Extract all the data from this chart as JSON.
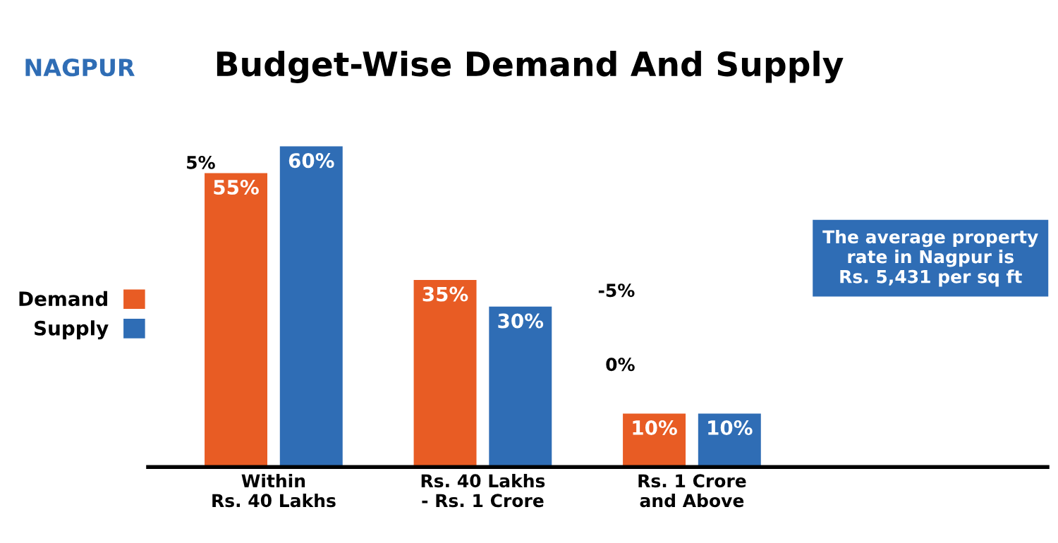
{
  "chart_data": {
    "type": "bar",
    "title": "Budget-Wise Demand And Supply",
    "subtitle": "NAGPUR",
    "categories": [
      "Within\nRs. 40 Lakhs",
      "Rs. 40 Lakhs\n- Rs. 1 Crore",
      "Rs. 1 Crore\nand Above"
    ],
    "series": [
      {
        "name": "Demand",
        "color": "#e85c24",
        "values": [
          55,
          35,
          10
        ],
        "value_labels": [
          "55%",
          "35%",
          "10%"
        ]
      },
      {
        "name": "Supply",
        "color": "#2f6db5",
        "values": [
          60,
          30,
          10
        ],
        "value_labels": [
          "60%",
          "30%",
          "10%"
        ]
      }
    ],
    "tick_labels": "x",
    "legend": "left",
    "annotations": [
      "5%",
      "-5%",
      "0%",
      "The average property\nrate in Nagpur is\nRs. 5,431 per sq ft"
    ]
  }
}
